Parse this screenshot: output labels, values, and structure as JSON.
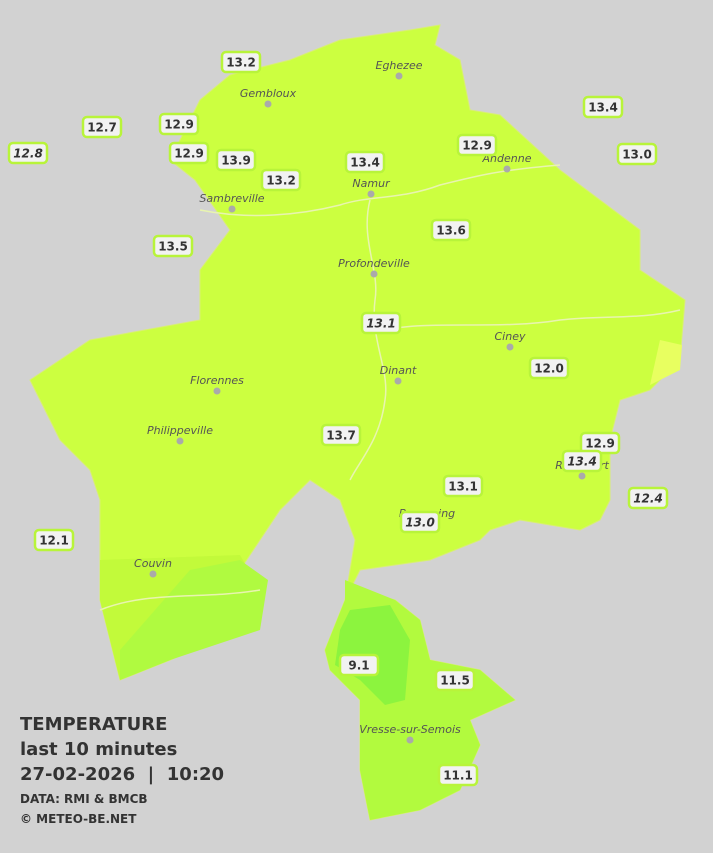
{
  "legend": {
    "title": "TEMPERATURE",
    "period": "last 10 minutes",
    "datetime": "27-02-2026  |  10:20",
    "source": "DATA: RMI & BMCB",
    "credit": "© METEO-BE.NET"
  },
  "towns": [
    "Eghezee",
    "Gembloux",
    "Andenne",
    "Namur",
    "Sambreville",
    "Profondeville",
    "Ciney",
    "Dinant",
    "Florennes",
    "Philippeville",
    "Couvin",
    "Vresse-sur-Semois",
    "Beauraing",
    "Rochefort"
  ],
  "stations": [
    "13.2",
    "12.7",
    "12.9",
    "12.8",
    "12.9",
    "13.9",
    "13.2",
    "13.4",
    "12.9",
    "13.4",
    "13.0",
    "13.5",
    "13.6",
    "13.1",
    "12.0",
    "13.7",
    "12.9",
    "13.4",
    "13.1",
    "13.0",
    "12.4",
    "12.1",
    "9.1",
    "11.5",
    "11.1"
  ]
}
